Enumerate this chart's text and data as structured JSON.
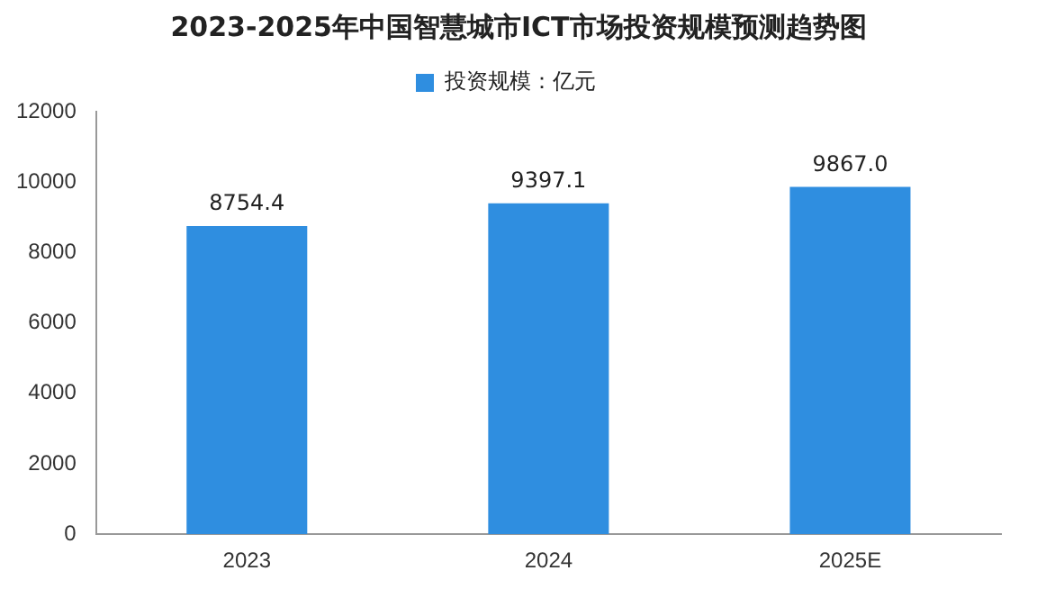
{
  "chart_data": {
    "type": "bar",
    "title": "2023-2025年中国智慧城市ICT市场投资规模预测趋势图",
    "categories": [
      "2023",
      "2024",
      "2025E"
    ],
    "series": [
      {
        "name": "投资规模：亿元",
        "color": "#2f8ee0",
        "values": [
          8754.4,
          9397.1,
          9867.0
        ],
        "value_labels": [
          "8754.4",
          "9397.1",
          "9867.0"
        ]
      }
    ],
    "ylim": [
      0,
      12000
    ],
    "yticks": [
      0,
      2000,
      4000,
      6000,
      8000,
      10000,
      12000
    ],
    "grid": false,
    "legend": "top"
  }
}
